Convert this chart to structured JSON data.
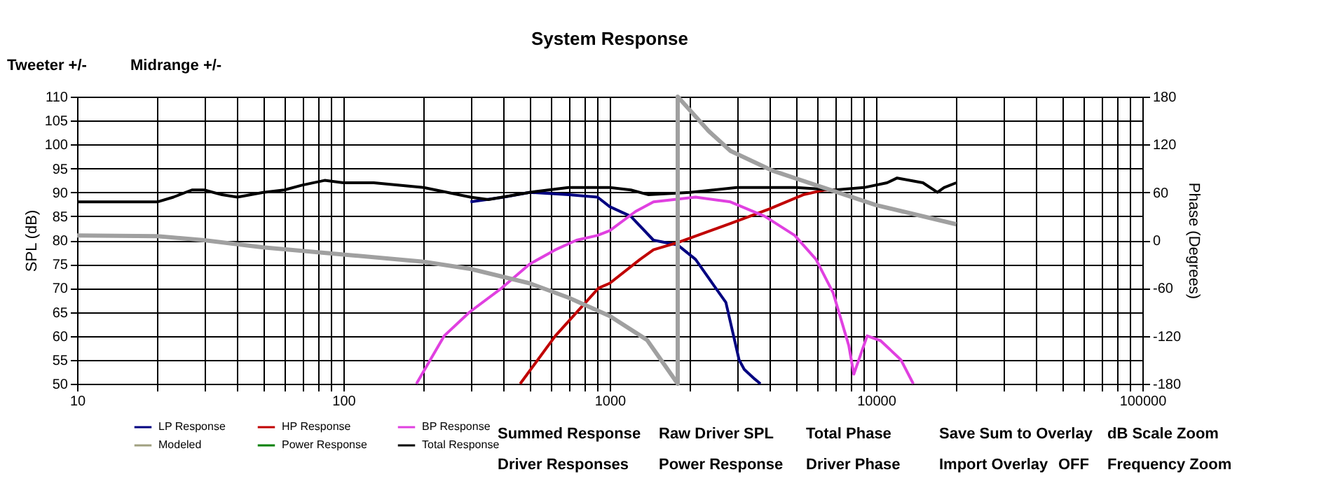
{
  "chart_data": {
    "type": "line",
    "title": "System Response",
    "xlabel": null,
    "ylabel": "SPL (dB)",
    "y2label": "Phase (Degrees)",
    "log": "x",
    "grid": true,
    "legend": "bottom left",
    "line_style": "solid",
    "marker": "none",
    "xlim": [
      10,
      100000
    ],
    "xticks": [
      10,
      {
        "value": 20,
        "label": null
      },
      {
        "value": 30,
        "label": null
      },
      {
        "value": 40,
        "label": null
      },
      {
        "value": 50,
        "label": null
      },
      {
        "value": 60,
        "label": null
      },
      {
        "value": 70,
        "label": null
      },
      {
        "value": 80,
        "label": null
      },
      {
        "value": 90,
        "label": null
      },
      100,
      {
        "value": 200,
        "label": null
      },
      {
        "value": 300,
        "label": null
      },
      {
        "value": 400,
        "label": null
      },
      {
        "value": 500,
        "label": null
      },
      {
        "value": 600,
        "label": null
      },
      {
        "value": 700,
        "label": null
      },
      {
        "value": 800,
        "label": null
      },
      {
        "value": 900,
        "label": null
      },
      1000,
      {
        "value": 2000,
        "label": null
      },
      {
        "value": 3000,
        "label": null
      },
      {
        "value": 4000,
        "label": null
      },
      {
        "value": 5000,
        "label": null
      },
      {
        "value": 6000,
        "label": null
      },
      {
        "value": 7000,
        "label": null
      },
      {
        "value": 8000,
        "label": null
      },
      {
        "value": 9000,
        "label": null
      },
      10000,
      {
        "value": 20000,
        "label": null
      },
      {
        "value": 30000,
        "label": null
      },
      {
        "value": 40000,
        "label": null
      },
      {
        "value": 50000,
        "label": null
      },
      {
        "value": 60000,
        "label": null
      },
      {
        "value": 70000,
        "label": null
      },
      {
        "value": 80000,
        "label": null
      },
      {
        "value": 90000,
        "label": null
      },
      100000
    ],
    "ylim": [
      50,
      110
    ],
    "yticks": [
      50,
      55,
      60,
      65,
      70,
      75,
      80,
      85,
      90,
      95,
      100,
      105,
      110
    ],
    "y2lim": [
      -180,
      180
    ],
    "y2ticks": [
      -180,
      -120,
      -60,
      0,
      60,
      120,
      180
    ],
    "series": [
      {
        "name": "LP Response",
        "color": "#000080",
        "x": [
          300,
          400,
          500,
          700,
          900,
          1000,
          1200,
          1460,
          1800,
          2100,
          2500,
          2730,
          3060,
          3200,
          3500,
          3680
        ],
        "values": [
          88,
          89,
          90,
          89.5,
          89,
          87,
          85,
          80,
          79,
          76,
          70,
          67,
          55,
          53,
          51,
          50
        ]
      },
      {
        "name": "HP Response",
        "color": "#c00000",
        "x": [
          461,
          625,
          908,
          1000,
          1300,
          1460,
          1800,
          2840,
          3960,
          5330,
          6400,
          7000
        ],
        "values": [
          50,
          60,
          70,
          71,
          76,
          78,
          79.5,
          83.5,
          86.5,
          89.5,
          90.5,
          90.5
        ]
      },
      {
        "name": "BP Response",
        "color": "#e040e0",
        "x": [
          188,
          239,
          298,
          393,
          500,
          625,
          750,
          900,
          1000,
          1250,
          1460,
          2100,
          2840,
          3820,
          4950,
          5950,
          6900,
          7900,
          8250,
          9260,
          10400,
          12400,
          13800
        ],
        "values": [
          50,
          60,
          65,
          70,
          75,
          78,
          80,
          81,
          82,
          86,
          88,
          89,
          88,
          85,
          81,
          76,
          69,
          58,
          52,
          60,
          59,
          55,
          50
        ]
      },
      {
        "name": "Modeled",
        "color": "#a0a080"
      },
      {
        "name": "Power Response",
        "color": "#008000"
      },
      {
        "name": "Total Response",
        "color": "#000000",
        "x": [
          10,
          20,
          23,
          27,
          30,
          35,
          40,
          50,
          60,
          70,
          85,
          100,
          130,
          200,
          300,
          350,
          500,
          700,
          1000,
          1200,
          1400,
          2000,
          3000,
          5000,
          7000,
          9000,
          11000,
          12000,
          15000,
          17000,
          18000,
          20000
        ],
        "values": [
          88,
          88,
          89,
          90.5,
          90.5,
          89.5,
          89,
          90,
          90.5,
          91.5,
          92.5,
          92,
          92,
          91,
          89,
          88.5,
          90,
          91,
          91,
          90.5,
          89.5,
          90,
          91,
          91,
          90.5,
          91,
          92,
          93,
          92,
          90,
          91,
          92
        ]
      },
      {
        "color": "#a0a0a0",
        "axis": "y2",
        "x": [
          10,
          20,
          30,
          50,
          100,
          200,
          300,
          500,
          700,
          1000,
          1380,
          1800,
          1800,
          2350,
          2840,
          4100,
          5950,
          10000,
          20000
        ],
        "values": [
          6,
          5,
          0,
          -9,
          -18,
          -27,
          -36,
          -54,
          -72,
          -95,
          -125,
          -180,
          180,
          137,
          112,
          87,
          69,
          44,
          20
        ]
      }
    ],
    "annotations": [
      "Tweeter +/-",
      "Midrange +/-",
      "Summed Response",
      "Raw Driver SPL",
      "Total Phase",
      "Save Sum to Overlay",
      "dB Scale Zoom",
      "Driver Responses",
      "Power Response",
      "Driver Phase",
      "Import Overlay",
      "OFF",
      "Frequency Zoom"
    ]
  }
}
